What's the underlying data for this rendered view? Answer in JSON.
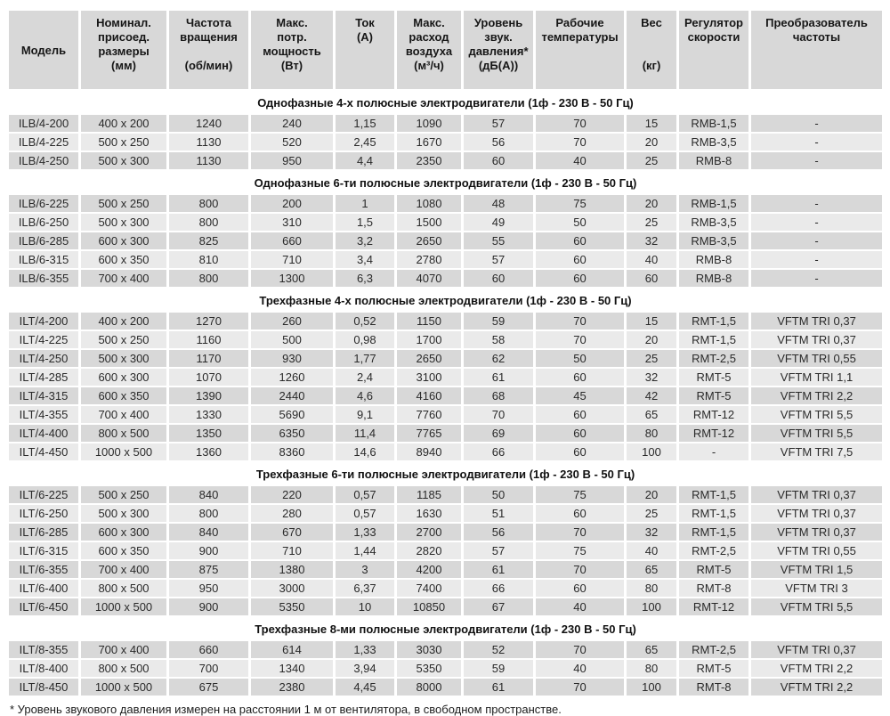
{
  "table": {
    "columns": [
      {
        "key": "model",
        "middle": true,
        "lines": [
          "Модель"
        ]
      },
      {
        "key": "size",
        "middle": false,
        "lines": [
          "Номинал.",
          "присоед.",
          "размеры",
          "(мм)"
        ]
      },
      {
        "key": "rpm",
        "middle": false,
        "lines": [
          "Частота",
          "вращения",
          "",
          "(об/мин)"
        ]
      },
      {
        "key": "power",
        "middle": false,
        "lines": [
          "Макс.",
          "потр.",
          "мощность",
          "(Вт)"
        ]
      },
      {
        "key": "current",
        "middle": false,
        "lines": [
          "Ток",
          "(А)"
        ]
      },
      {
        "key": "airflow",
        "middle": false,
        "lines": [
          "Макс.",
          "расход",
          "воздуха",
          "(м³/ч)"
        ]
      },
      {
        "key": "noise",
        "middle": false,
        "lines": [
          "Уровень",
          "звук.",
          "давления*",
          "(дБ(А))"
        ]
      },
      {
        "key": "temp",
        "middle": false,
        "lines": [
          "Рабочие",
          "температуры"
        ]
      },
      {
        "key": "weight",
        "middle": false,
        "lines": [
          "Вес",
          "",
          "",
          "(кг)"
        ]
      },
      {
        "key": "regulator",
        "middle": false,
        "lines": [
          "Регулятор",
          "скорости"
        ]
      },
      {
        "key": "converter",
        "middle": false,
        "lines": [
          "Преобразователь",
          "частоты"
        ]
      }
    ],
    "sections": [
      {
        "title": "Однофазные 4-х полюсные электродвигатели (1ф - 230 В - 50 Гц)",
        "rows": [
          [
            "ILB/4-200",
            "400 x 200",
            "1240",
            "240",
            "1,15",
            "1090",
            "57",
            "70",
            "15",
            "RMB-1,5",
            "-"
          ],
          [
            "ILB/4-225",
            "500 x 250",
            "1130",
            "520",
            "2,45",
            "1670",
            "56",
            "70",
            "20",
            "RMB-3,5",
            "-"
          ],
          [
            "ILB/4-250",
            "500 x 300",
            "1130",
            "950",
            "4,4",
            "2350",
            "60",
            "40",
            "25",
            "RMB-8",
            "-"
          ]
        ]
      },
      {
        "title": "Однофазные 6-ти полюсные электродвигатели (1ф - 230 В - 50 Гц)",
        "rows": [
          [
            "ILB/6-225",
            "500 x 250",
            "800",
            "200",
            "1",
            "1080",
            "48",
            "75",
            "20",
            "RMB-1,5",
            "-"
          ],
          [
            "ILB/6-250",
            "500 x 300",
            "800",
            "310",
            "1,5",
            "1500",
            "49",
            "50",
            "25",
            "RMB-3,5",
            "-"
          ],
          [
            "ILB/6-285",
            "600 x 300",
            "825",
            "660",
            "3,2",
            "2650",
            "55",
            "60",
            "32",
            "RMB-3,5",
            "-"
          ],
          [
            "ILB/6-315",
            "600 x 350",
            "810",
            "710",
            "3,4",
            "2780",
            "57",
            "60",
            "40",
            "RMB-8",
            "-"
          ],
          [
            "ILB/6-355",
            "700 x 400",
            "800",
            "1300",
            "6,3",
            "4070",
            "60",
            "60",
            "60",
            "RMB-8",
            "-"
          ]
        ]
      },
      {
        "title": "Трехфазные 4-х полюсные электродвигатели (1ф - 230 В - 50 Гц)",
        "rows": [
          [
            "ILT/4-200",
            "400 x 200",
            "1270",
            "260",
            "0,52",
            "1150",
            "59",
            "70",
            "15",
            "RMT-1,5",
            "VFTM TRI 0,37"
          ],
          [
            "ILT/4-225",
            "500 x 250",
            "1160",
            "500",
            "0,98",
            "1700",
            "58",
            "70",
            "20",
            "RMT-1,5",
            "VFTM TRI 0,37"
          ],
          [
            "ILT/4-250",
            "500 x 300",
            "1170",
            "930",
            "1,77",
            "2650",
            "62",
            "50",
            "25",
            "RMT-2,5",
            "VFTM TRI 0,55"
          ],
          [
            "ILT/4-285",
            "600 x 300",
            "1070",
            "1260",
            "2,4",
            "3100",
            "61",
            "60",
            "32",
            "RMT-5",
            "VFTM TRI 1,1"
          ],
          [
            "ILT/4-315",
            "600 x 350",
            "1390",
            "2440",
            "4,6",
            "4160",
            "68",
            "45",
            "42",
            "RMT-5",
            "VFTM TRI 2,2"
          ],
          [
            "ILT/4-355",
            "700 x 400",
            "1330",
            "5690",
            "9,1",
            "7760",
            "70",
            "60",
            "65",
            "RMT-12",
            "VFTM TRI 5,5"
          ],
          [
            "ILT/4-400",
            "800 x 500",
            "1350",
            "6350",
            "11,4",
            "7765",
            "69",
            "60",
            "80",
            "RMT-12",
            "VFTM TRI 5,5"
          ],
          [
            "ILT/4-450",
            "1000 x 500",
            "1360",
            "8360",
            "14,6",
            "8940",
            "66",
            "60",
            "100",
            "-",
            "VFTM TRI 7,5"
          ]
        ]
      },
      {
        "title": "Трехфазные 6-ти полюсные электродвигатели (1ф - 230 В - 50 Гц)",
        "rows": [
          [
            "ILT/6-225",
            "500 x 250",
            "840",
            "220",
            "0,57",
            "1185",
            "50",
            "75",
            "20",
            "RMT-1,5",
            "VFTM TRI 0,37"
          ],
          [
            "ILT/6-250",
            "500 x 300",
            "800",
            "280",
            "0,57",
            "1630",
            "51",
            "60",
            "25",
            "RMT-1,5",
            "VFTM TRI 0,37"
          ],
          [
            "ILT/6-285",
            "600 x 300",
            "840",
            "670",
            "1,33",
            "2700",
            "56",
            "70",
            "32",
            "RMT-1,5",
            "VFTM TRI 0,37"
          ],
          [
            "ILT/6-315",
            "600 x 350",
            "900",
            "710",
            "1,44",
            "2820",
            "57",
            "75",
            "40",
            "RMT-2,5",
            "VFTM TRI 0,55"
          ],
          [
            "ILT/6-355",
            "700 x 400",
            "875",
            "1380",
            "3",
            "4200",
            "61",
            "70",
            "65",
            "RMT-5",
            "VFTM TRI 1,5"
          ],
          [
            "ILT/6-400",
            "800 x 500",
            "950",
            "3000",
            "6,37",
            "7400",
            "66",
            "60",
            "80",
            "RMT-8",
            "VFTM TRI 3"
          ],
          [
            "ILT/6-450",
            "1000 x 500",
            "900",
            "5350",
            "10",
            "10850",
            "67",
            "40",
            "100",
            "RMT-12",
            "VFTM TRI 5,5"
          ]
        ]
      },
      {
        "title": "Трехфазные 8-ми полюсные электродвигатели (1ф - 230 В - 50 Гц)",
        "rows": [
          [
            "ILT/8-355",
            "700 x 400",
            "660",
            "614",
            "1,33",
            "3030",
            "52",
            "70",
            "65",
            "RMT-2,5",
            "VFTM TRI 0,37"
          ],
          [
            "ILT/8-400",
            "800 x 500",
            "700",
            "1340",
            "3,94",
            "5350",
            "59",
            "40",
            "80",
            "RMT-5",
            "VFTM TRI 2,2"
          ],
          [
            "ILT/8-450",
            "1000 x 500",
            "675",
            "2380",
            "4,45",
            "8000",
            "61",
            "70",
            "100",
            "RMT-8",
            "VFTM TRI 2,2"
          ]
        ]
      }
    ],
    "footnote": "* Уровень звукового давления измерен на расстоянии 1 м от вентилятора, в свободном пространстве."
  }
}
